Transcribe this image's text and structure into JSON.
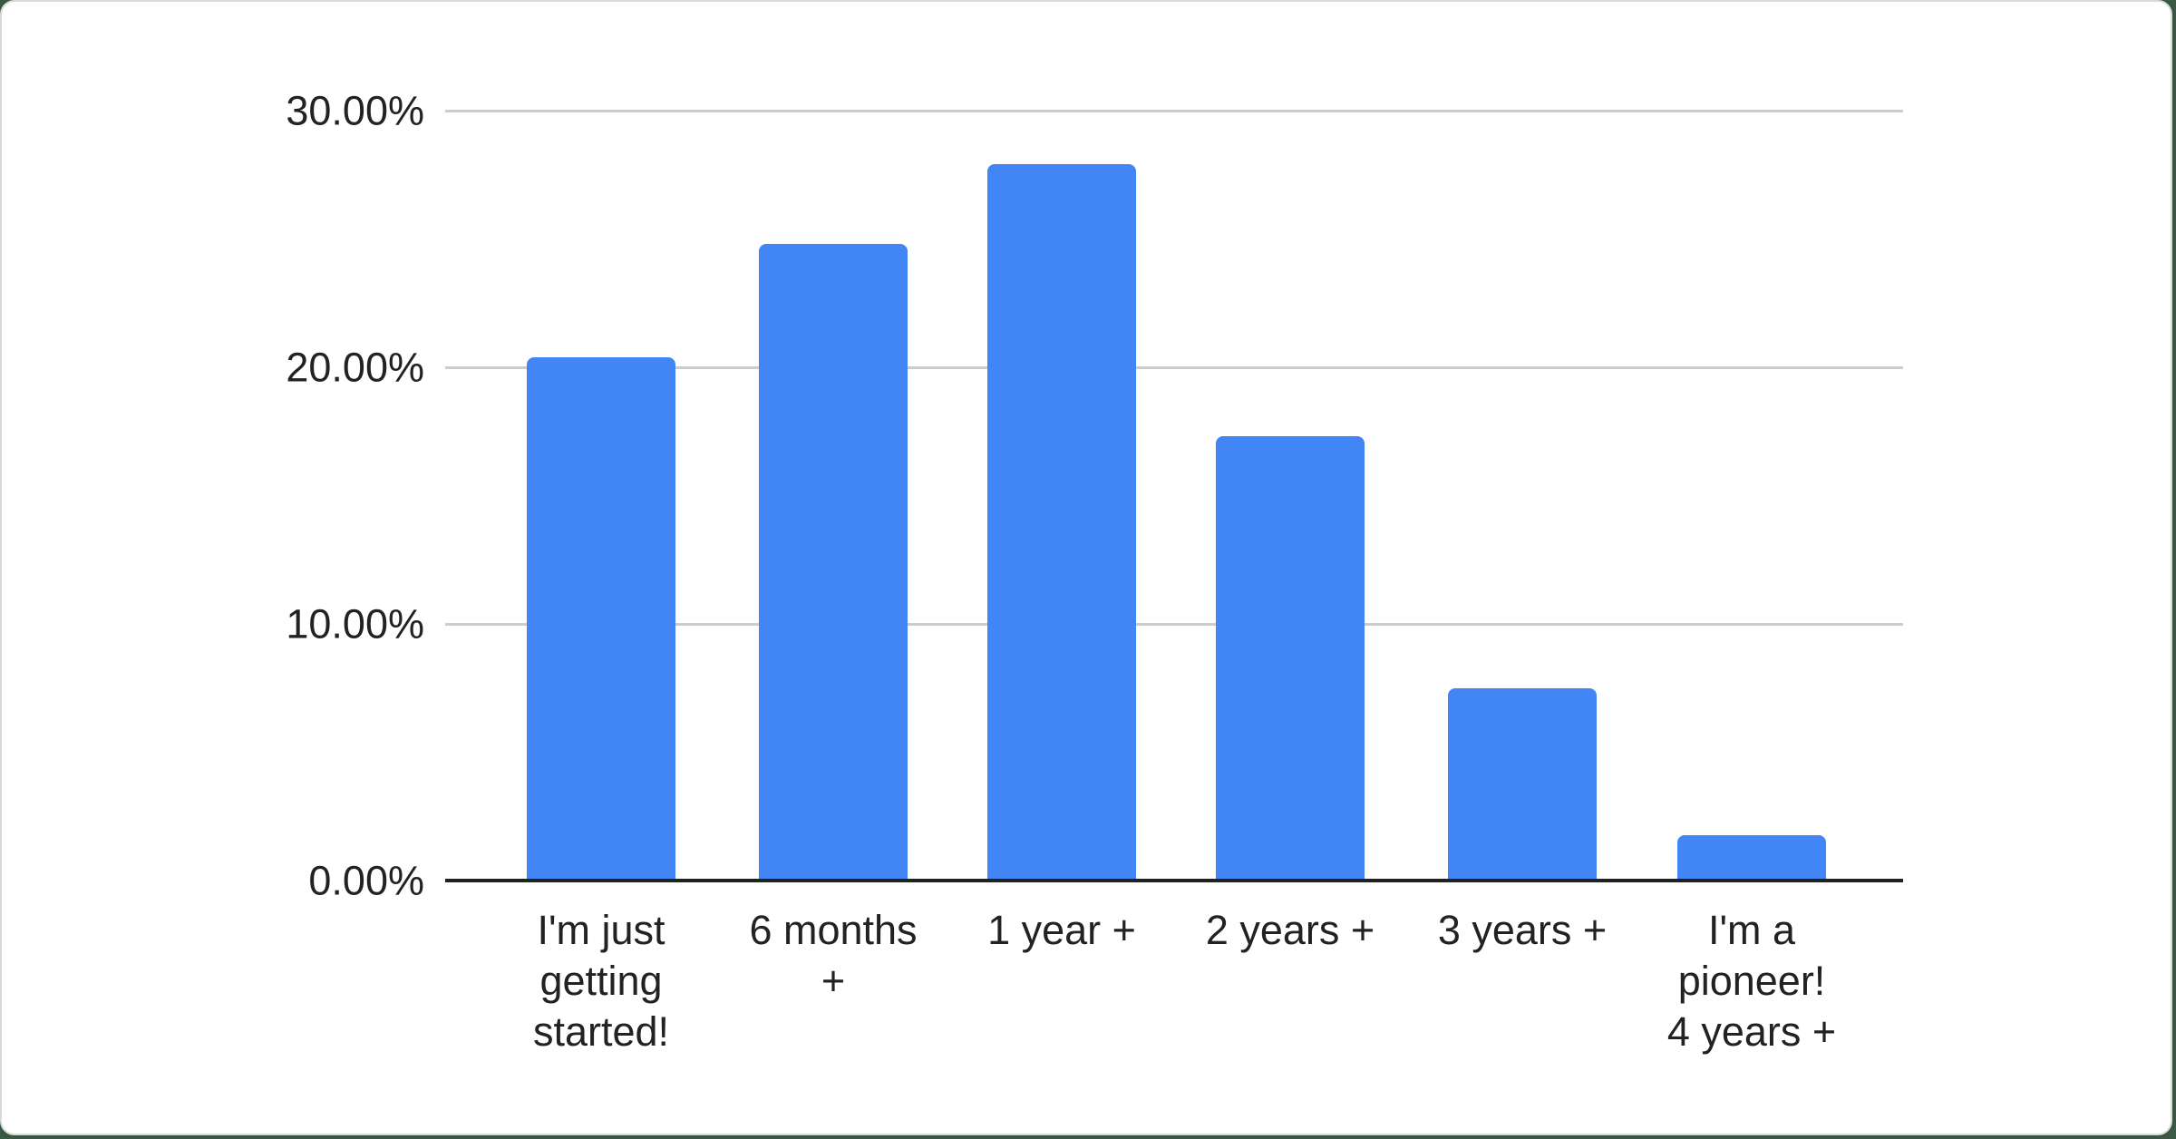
{
  "chart_data": {
    "type": "bar",
    "categories": [
      "I'm just getting started!",
      "6 months +",
      "1 year +",
      "2 years +",
      "3 years +",
      "I'm a pioneer! 4 years +"
    ],
    "categories_display": [
      "I'm just\ngetting\nstarted!",
      "6 months\n+",
      "1 year +",
      "2 years +",
      "3 years +",
      "I'm a\npioneer!\n4 years +"
    ],
    "values": [
      20.4,
      24.8,
      27.9,
      17.3,
      7.5,
      1.75
    ],
    "value_unit": "%",
    "y_tick_labels": [
      "30.00%",
      "20.00%",
      "10.00%",
      "0.00%"
    ],
    "ylim": [
      0,
      30
    ],
    "grid": true,
    "legend_position": "none",
    "bar_color": "#4285f4",
    "gridline_color": "#cccccc",
    "axis_line_color": "#212121",
    "text_color": "#222222",
    "page_background_color": "#3c5a46",
    "card_background_color": "#ffffff"
  }
}
